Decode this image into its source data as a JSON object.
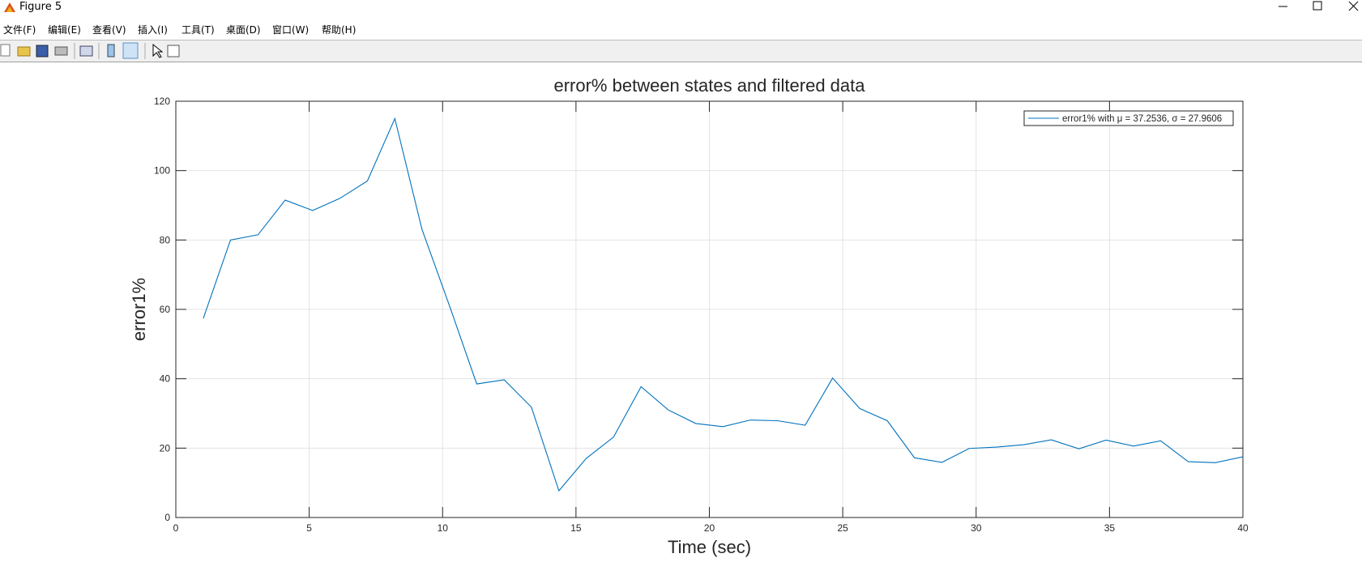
{
  "window": {
    "title": "Figure 5"
  },
  "menu": [
    "文件(F)",
    "编辑(E)",
    "查看(V)",
    "插入(I)",
    "工具(T)",
    "桌面(D)",
    "窗口(W)",
    "帮助(H)"
  ],
  "chart_data": {
    "type": "line",
    "title": "error% between states and filtered data",
    "xlabel": "Time (sec)",
    "ylabel": "error1%",
    "x": [
      1.03,
      2.05,
      3.08,
      4.1,
      5.13,
      6.15,
      7.18,
      8.21,
      9.23,
      10.26,
      11.28,
      12.31,
      13.33,
      14.36,
      15.38,
      16.41,
      17.44,
      18.46,
      19.49,
      20.51,
      21.54,
      22.56,
      23.59,
      24.62,
      25.64,
      26.67,
      27.69,
      28.72,
      29.74,
      30.77,
      31.79,
      32.82,
      33.85,
      34.87,
      35.9,
      36.92,
      37.95,
      38.97,
      40
    ],
    "series": [
      {
        "name": "error1% with μ = 37.2536, σ = 27.9606",
        "color": "#0072bd",
        "values": [
          57.4,
          80,
          81.5,
          91.5,
          88.5,
          92,
          97,
          115,
          83,
          61,
          38.5,
          39.7,
          31.8,
          7.7,
          17,
          23.2,
          37.7,
          31,
          27.1,
          26.2,
          28.1,
          27.9,
          26.6,
          40.2,
          31.4,
          27.9,
          17.2,
          15.9,
          19.9,
          20.3,
          21,
          22.4,
          19.8,
          22.3,
          20.6,
          22.1,
          16.1,
          15.8,
          17.5
        ]
      }
    ],
    "xlim": [
      0,
      40
    ],
    "ylim": [
      0,
      120
    ],
    "xticks": [
      0,
      5,
      10,
      15,
      20,
      25,
      30,
      35,
      40
    ],
    "yticks": [
      0,
      20,
      40,
      60,
      80,
      100,
      120
    ],
    "grid": true,
    "legend": "upper right"
  }
}
